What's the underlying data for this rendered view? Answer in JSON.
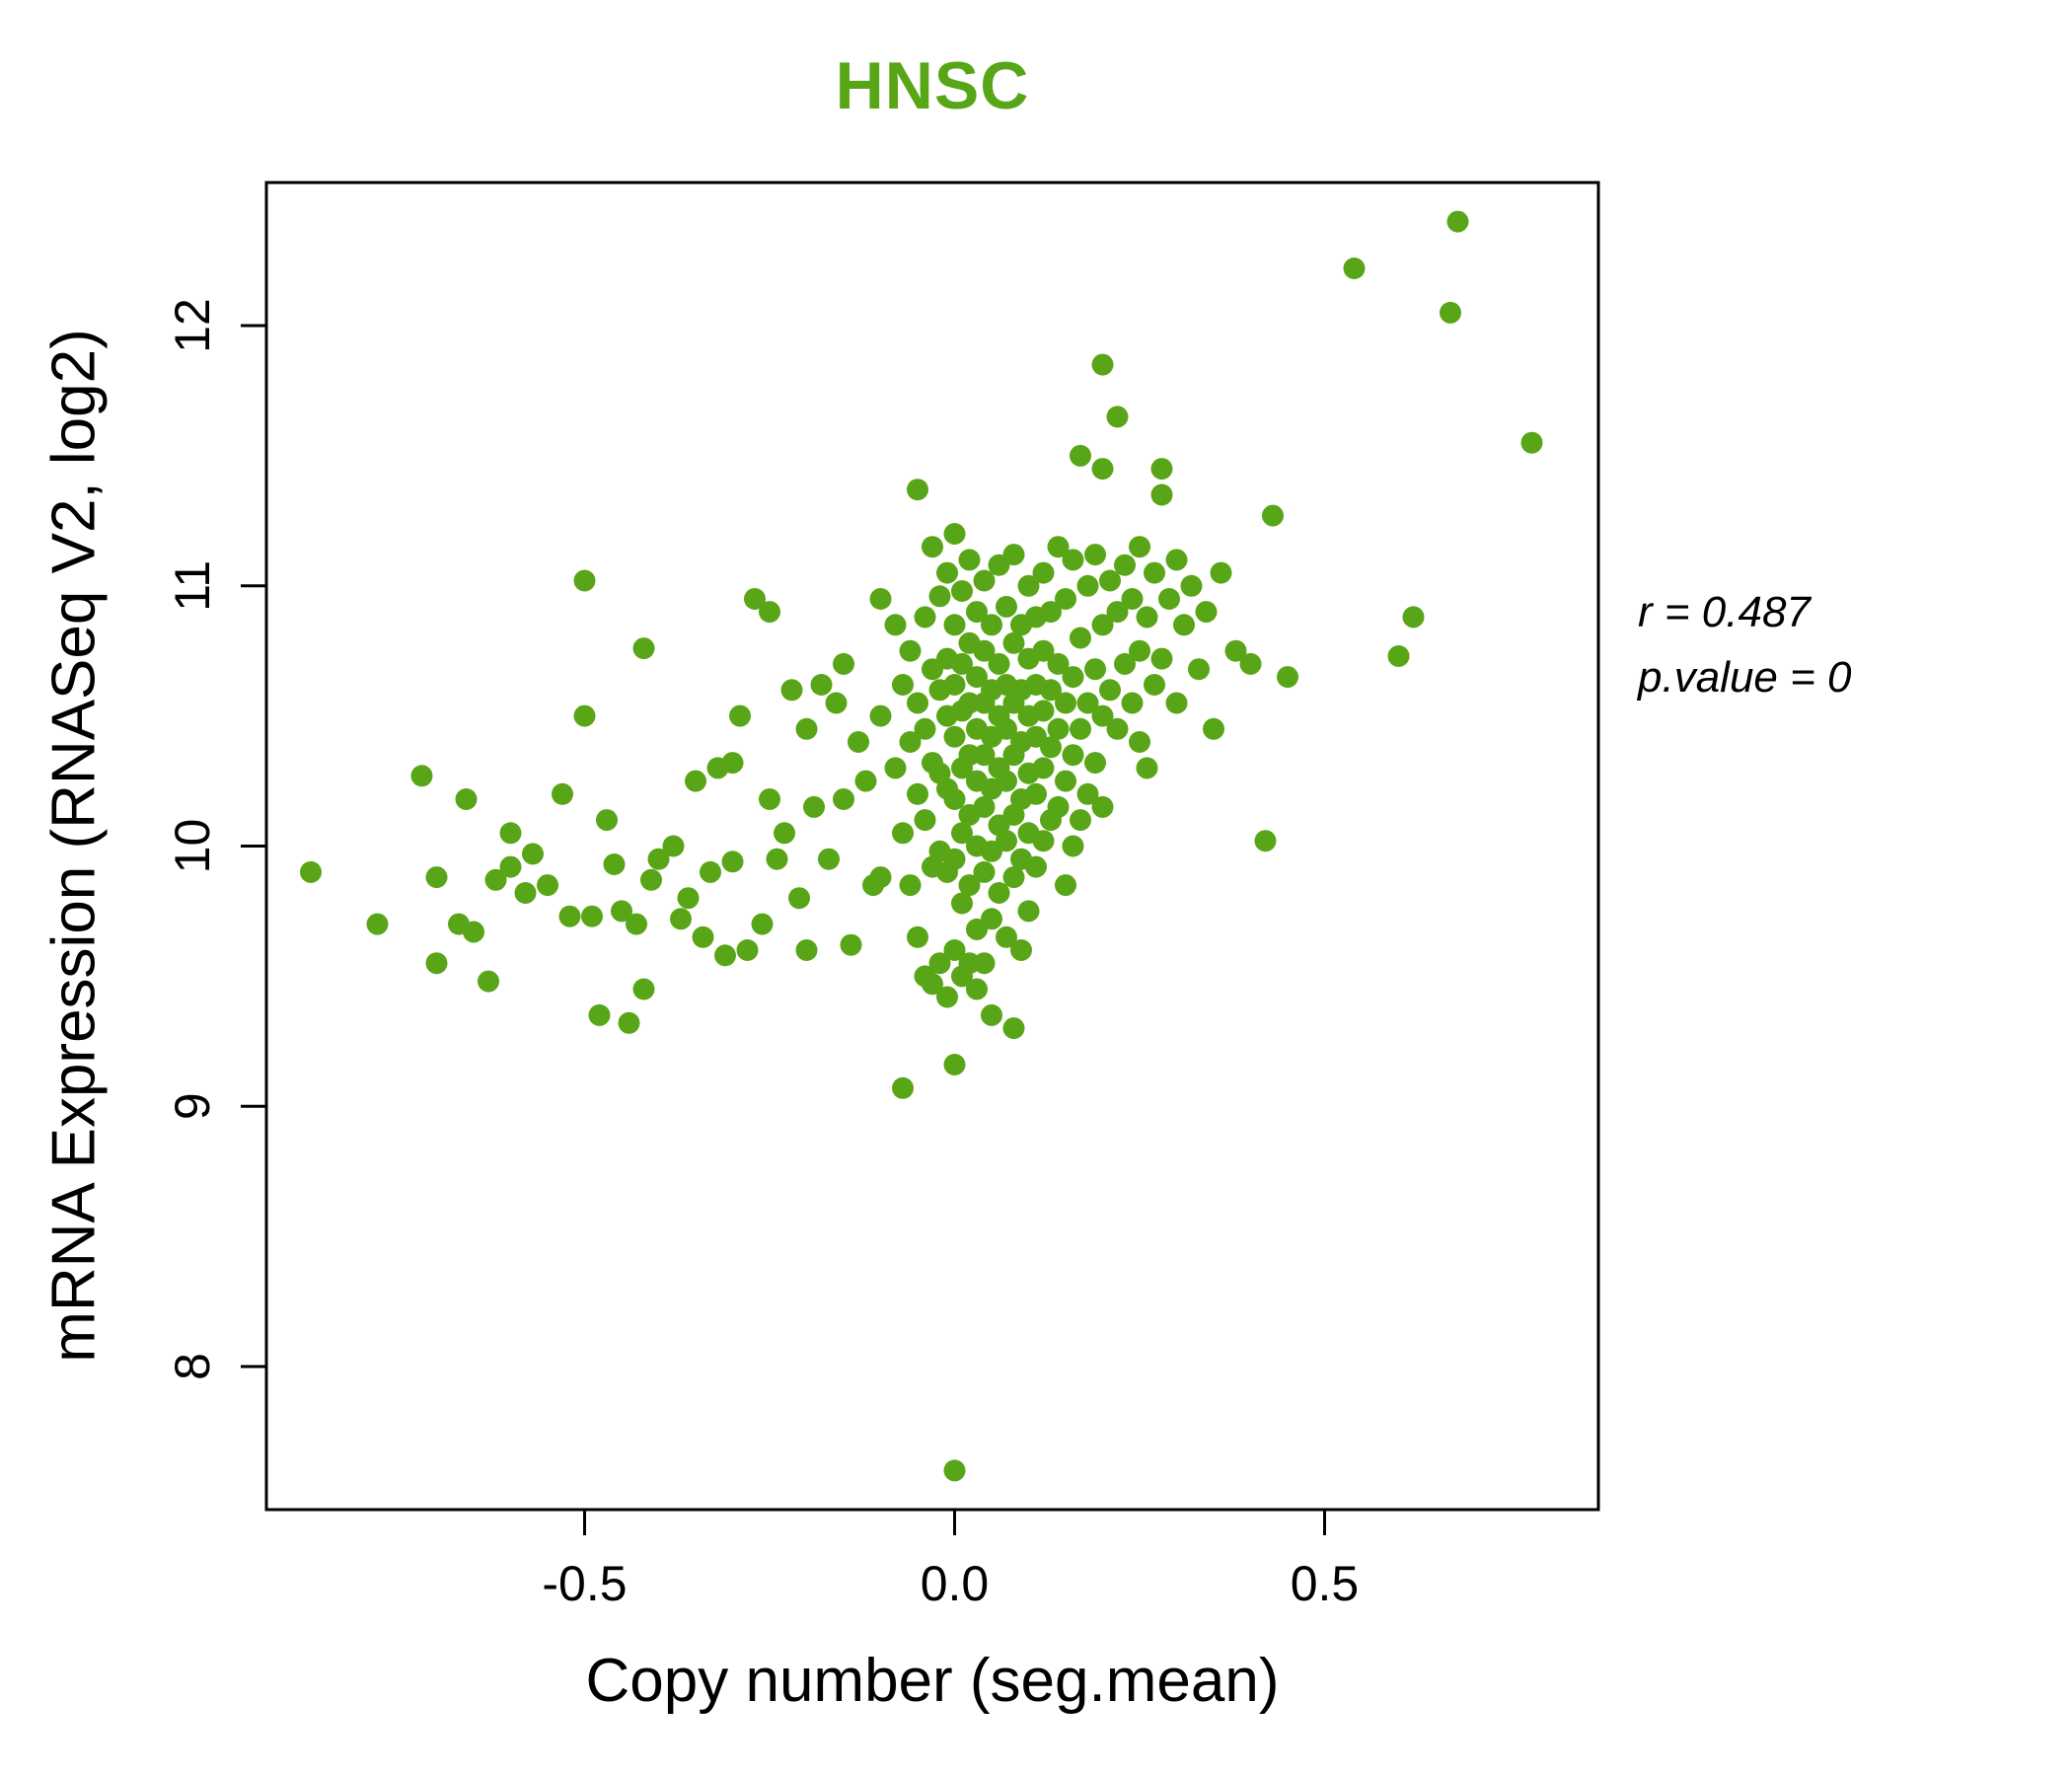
{
  "title": "HNSC",
  "title_color": "#58a618",
  "axis": {
    "xlabel": "Copy number (seg.mean)",
    "ylabel": "mRNA Expression (RNASeq V2, log2)"
  },
  "annotation": {
    "line1": "r = 0.487",
    "line2": "p.value = 0"
  },
  "chart_data": {
    "type": "scatter",
    "title": "HNSC",
    "xlabel": "Copy number (seg.mean)",
    "ylabel": "mRNA Expression (RNASeq V2, log2)",
    "xlim": [
      -0.93,
      0.87
    ],
    "ylim": [
      7.45,
      12.55
    ],
    "x_ticks": [
      -0.5,
      0.0,
      0.5
    ],
    "x_tick_labels": [
      "-0.5",
      "0.0",
      "0.5"
    ],
    "y_ticks": [
      8,
      9,
      10,
      11,
      12
    ],
    "y_tick_labels": [
      "8",
      "9",
      "10",
      "11",
      "12"
    ],
    "grid": false,
    "legend": "none",
    "point_color": "#58a618",
    "point_radius": 11,
    "correlation_r": 0.487,
    "p_value": 0,
    "points": [
      [
        -0.87,
        9.9
      ],
      [
        -0.78,
        9.7
      ],
      [
        -0.72,
        10.27
      ],
      [
        -0.7,
        9.88
      ],
      [
        -0.7,
        9.55
      ],
      [
        -0.67,
        9.7
      ],
      [
        -0.66,
        10.18
      ],
      [
        -0.65,
        9.67
      ],
      [
        -0.63,
        9.48
      ],
      [
        -0.62,
        9.87
      ],
      [
        -0.6,
        10.05
      ],
      [
        -0.6,
        9.92
      ],
      [
        -0.58,
        9.82
      ],
      [
        -0.57,
        9.97
      ],
      [
        -0.55,
        9.85
      ],
      [
        -0.53,
        10.2
      ],
      [
        -0.52,
        9.73
      ],
      [
        -0.5,
        11.02
      ],
      [
        -0.5,
        10.5
      ],
      [
        -0.49,
        9.73
      ],
      [
        -0.48,
        9.35
      ],
      [
        -0.47,
        10.1
      ],
      [
        -0.46,
        9.93
      ],
      [
        -0.45,
        9.75
      ],
      [
        -0.44,
        9.32
      ],
      [
        -0.43,
        9.7
      ],
      [
        -0.42,
        10.76
      ],
      [
        -0.42,
        9.45
      ],
      [
        -0.41,
        9.87
      ],
      [
        -0.4,
        9.95
      ],
      [
        -0.38,
        10.0
      ],
      [
        -0.37,
        9.72
      ],
      [
        -0.36,
        9.8
      ],
      [
        -0.35,
        10.25
      ],
      [
        -0.34,
        9.65
      ],
      [
        -0.33,
        9.9
      ],
      [
        -0.32,
        10.3
      ],
      [
        -0.31,
        9.58
      ],
      [
        -0.3,
        10.32
      ],
      [
        -0.3,
        9.94
      ],
      [
        -0.29,
        10.5
      ],
      [
        -0.28,
        9.6
      ],
      [
        -0.27,
        10.95
      ],
      [
        -0.26,
        9.7
      ],
      [
        -0.25,
        10.9
      ],
      [
        -0.25,
        10.18
      ],
      [
        -0.24,
        9.95
      ],
      [
        -0.23,
        10.05
      ],
      [
        -0.22,
        10.6
      ],
      [
        -0.21,
        9.8
      ],
      [
        -0.2,
        10.45
      ],
      [
        -0.2,
        9.6
      ],
      [
        -0.19,
        10.15
      ],
      [
        -0.18,
        10.62
      ],
      [
        -0.17,
        9.95
      ],
      [
        -0.16,
        10.55
      ],
      [
        -0.15,
        10.7
      ],
      [
        -0.15,
        10.18
      ],
      [
        -0.14,
        9.62
      ],
      [
        -0.13,
        10.4
      ],
      [
        -0.12,
        10.25
      ],
      [
        -0.11,
        9.85
      ],
      [
        -0.1,
        10.95
      ],
      [
        -0.1,
        10.5
      ],
      [
        -0.1,
        9.88
      ],
      [
        -0.08,
        10.85
      ],
      [
        -0.08,
        10.3
      ],
      [
        -0.07,
        10.62
      ],
      [
        -0.07,
        10.05
      ],
      [
        -0.07,
        9.07
      ],
      [
        -0.06,
        10.75
      ],
      [
        -0.06,
        10.4
      ],
      [
        -0.06,
        9.85
      ],
      [
        -0.05,
        11.37
      ],
      [
        -0.05,
        10.55
      ],
      [
        -0.05,
        10.2
      ],
      [
        -0.05,
        9.65
      ],
      [
        -0.04,
        10.88
      ],
      [
        -0.04,
        10.45
      ],
      [
        -0.04,
        10.1
      ],
      [
        -0.04,
        9.5
      ],
      [
        -0.03,
        11.15
      ],
      [
        -0.03,
        10.68
      ],
      [
        -0.03,
        10.32
      ],
      [
        -0.03,
        9.92
      ],
      [
        -0.03,
        9.47
      ],
      [
        -0.02,
        10.96
      ],
      [
        -0.02,
        10.6
      ],
      [
        -0.02,
        10.28
      ],
      [
        -0.02,
        9.98
      ],
      [
        -0.02,
        9.55
      ],
      [
        -0.01,
        11.05
      ],
      [
        -0.01,
        10.72
      ],
      [
        -0.01,
        10.5
      ],
      [
        -0.01,
        10.22
      ],
      [
        -0.01,
        9.9
      ],
      [
        -0.01,
        9.42
      ],
      [
        0.0,
        11.2
      ],
      [
        0.0,
        10.85
      ],
      [
        0.0,
        10.62
      ],
      [
        0.0,
        10.42
      ],
      [
        0.0,
        10.18
      ],
      [
        0.0,
        9.95
      ],
      [
        0.0,
        9.6
      ],
      [
        0.0,
        9.16
      ],
      [
        0.0,
        7.6
      ],
      [
        0.01,
        10.98
      ],
      [
        0.01,
        10.7
      ],
      [
        0.01,
        10.52
      ],
      [
        0.01,
        10.3
      ],
      [
        0.01,
        10.05
      ],
      [
        0.01,
        9.78
      ],
      [
        0.01,
        9.5
      ],
      [
        0.02,
        11.1
      ],
      [
        0.02,
        10.78
      ],
      [
        0.02,
        10.55
      ],
      [
        0.02,
        10.35
      ],
      [
        0.02,
        10.12
      ],
      [
        0.02,
        9.85
      ],
      [
        0.02,
        9.55
      ],
      [
        0.03,
        10.9
      ],
      [
        0.03,
        10.65
      ],
      [
        0.03,
        10.45
      ],
      [
        0.03,
        10.25
      ],
      [
        0.03,
        10.0
      ],
      [
        0.03,
        9.68
      ],
      [
        0.03,
        9.45
      ],
      [
        0.04,
        11.02
      ],
      [
        0.04,
        10.75
      ],
      [
        0.04,
        10.55
      ],
      [
        0.04,
        10.35
      ],
      [
        0.04,
        10.15
      ],
      [
        0.04,
        9.9
      ],
      [
        0.04,
        9.55
      ],
      [
        0.05,
        10.85
      ],
      [
        0.05,
        10.6
      ],
      [
        0.05,
        10.42
      ],
      [
        0.05,
        10.22
      ],
      [
        0.05,
        9.98
      ],
      [
        0.05,
        9.72
      ],
      [
        0.05,
        9.35
      ],
      [
        0.06,
        11.08
      ],
      [
        0.06,
        10.7
      ],
      [
        0.06,
        10.5
      ],
      [
        0.06,
        10.3
      ],
      [
        0.06,
        10.08
      ],
      [
        0.06,
        9.82
      ],
      [
        0.07,
        10.92
      ],
      [
        0.07,
        10.62
      ],
      [
        0.07,
        10.45
      ],
      [
        0.07,
        10.25
      ],
      [
        0.07,
        10.02
      ],
      [
        0.07,
        9.65
      ],
      [
        0.08,
        11.12
      ],
      [
        0.08,
        10.78
      ],
      [
        0.08,
        10.55
      ],
      [
        0.08,
        10.35
      ],
      [
        0.08,
        10.12
      ],
      [
        0.08,
        9.88
      ],
      [
        0.08,
        9.3
      ],
      [
        0.09,
        10.85
      ],
      [
        0.09,
        10.6
      ],
      [
        0.09,
        10.4
      ],
      [
        0.09,
        10.18
      ],
      [
        0.09,
        9.95
      ],
      [
        0.09,
        9.6
      ],
      [
        0.1,
        11.0
      ],
      [
        0.1,
        10.72
      ],
      [
        0.1,
        10.5
      ],
      [
        0.1,
        10.28
      ],
      [
        0.1,
        10.05
      ],
      [
        0.1,
        9.75
      ],
      [
        0.11,
        10.88
      ],
      [
        0.11,
        10.62
      ],
      [
        0.11,
        10.42
      ],
      [
        0.11,
        10.2
      ],
      [
        0.11,
        9.92
      ],
      [
        0.12,
        11.05
      ],
      [
        0.12,
        10.75
      ],
      [
        0.12,
        10.52
      ],
      [
        0.12,
        10.3
      ],
      [
        0.12,
        10.02
      ],
      [
        0.13,
        10.9
      ],
      [
        0.13,
        10.6
      ],
      [
        0.13,
        10.38
      ],
      [
        0.13,
        10.1
      ],
      [
        0.14,
        11.15
      ],
      [
        0.14,
        10.7
      ],
      [
        0.14,
        10.45
      ],
      [
        0.14,
        10.15
      ],
      [
        0.15,
        10.95
      ],
      [
        0.15,
        10.55
      ],
      [
        0.15,
        10.25
      ],
      [
        0.15,
        9.85
      ],
      [
        0.16,
        11.1
      ],
      [
        0.16,
        10.65
      ],
      [
        0.16,
        10.35
      ],
      [
        0.16,
        10.0
      ],
      [
        0.17,
        11.5
      ],
      [
        0.17,
        10.8
      ],
      [
        0.17,
        10.45
      ],
      [
        0.17,
        10.1
      ],
      [
        0.18,
        11.0
      ],
      [
        0.18,
        10.55
      ],
      [
        0.18,
        10.2
      ],
      [
        0.19,
        11.12
      ],
      [
        0.19,
        10.68
      ],
      [
        0.19,
        10.32
      ],
      [
        0.2,
        11.85
      ],
      [
        0.2,
        11.45
      ],
      [
        0.2,
        10.85
      ],
      [
        0.2,
        10.5
      ],
      [
        0.2,
        10.15
      ],
      [
        0.21,
        11.02
      ],
      [
        0.21,
        10.6
      ],
      [
        0.22,
        11.65
      ],
      [
        0.22,
        10.9
      ],
      [
        0.22,
        10.45
      ],
      [
        0.23,
        11.08
      ],
      [
        0.23,
        10.7
      ],
      [
        0.24,
        10.95
      ],
      [
        0.24,
        10.55
      ],
      [
        0.25,
        11.15
      ],
      [
        0.25,
        10.75
      ],
      [
        0.25,
        10.4
      ],
      [
        0.26,
        10.88
      ],
      [
        0.26,
        10.3
      ],
      [
        0.27,
        11.05
      ],
      [
        0.27,
        10.62
      ],
      [
        0.28,
        11.45
      ],
      [
        0.28,
        11.35
      ],
      [
        0.28,
        10.72
      ],
      [
        0.29,
        10.95
      ],
      [
        0.3,
        11.1
      ],
      [
        0.3,
        10.55
      ],
      [
        0.31,
        10.85
      ],
      [
        0.32,
        11.0
      ],
      [
        0.33,
        10.68
      ],
      [
        0.34,
        10.9
      ],
      [
        0.35,
        10.45
      ],
      [
        0.36,
        11.05
      ],
      [
        0.38,
        10.75
      ],
      [
        0.4,
        10.7
      ],
      [
        0.42,
        10.02
      ],
      [
        0.43,
        11.27
      ],
      [
        0.45,
        10.65
      ],
      [
        0.54,
        12.22
      ],
      [
        0.6,
        10.73
      ],
      [
        0.62,
        10.88
      ],
      [
        0.67,
        12.05
      ],
      [
        0.68,
        12.4
      ],
      [
        0.78,
        11.55
      ]
    ]
  }
}
